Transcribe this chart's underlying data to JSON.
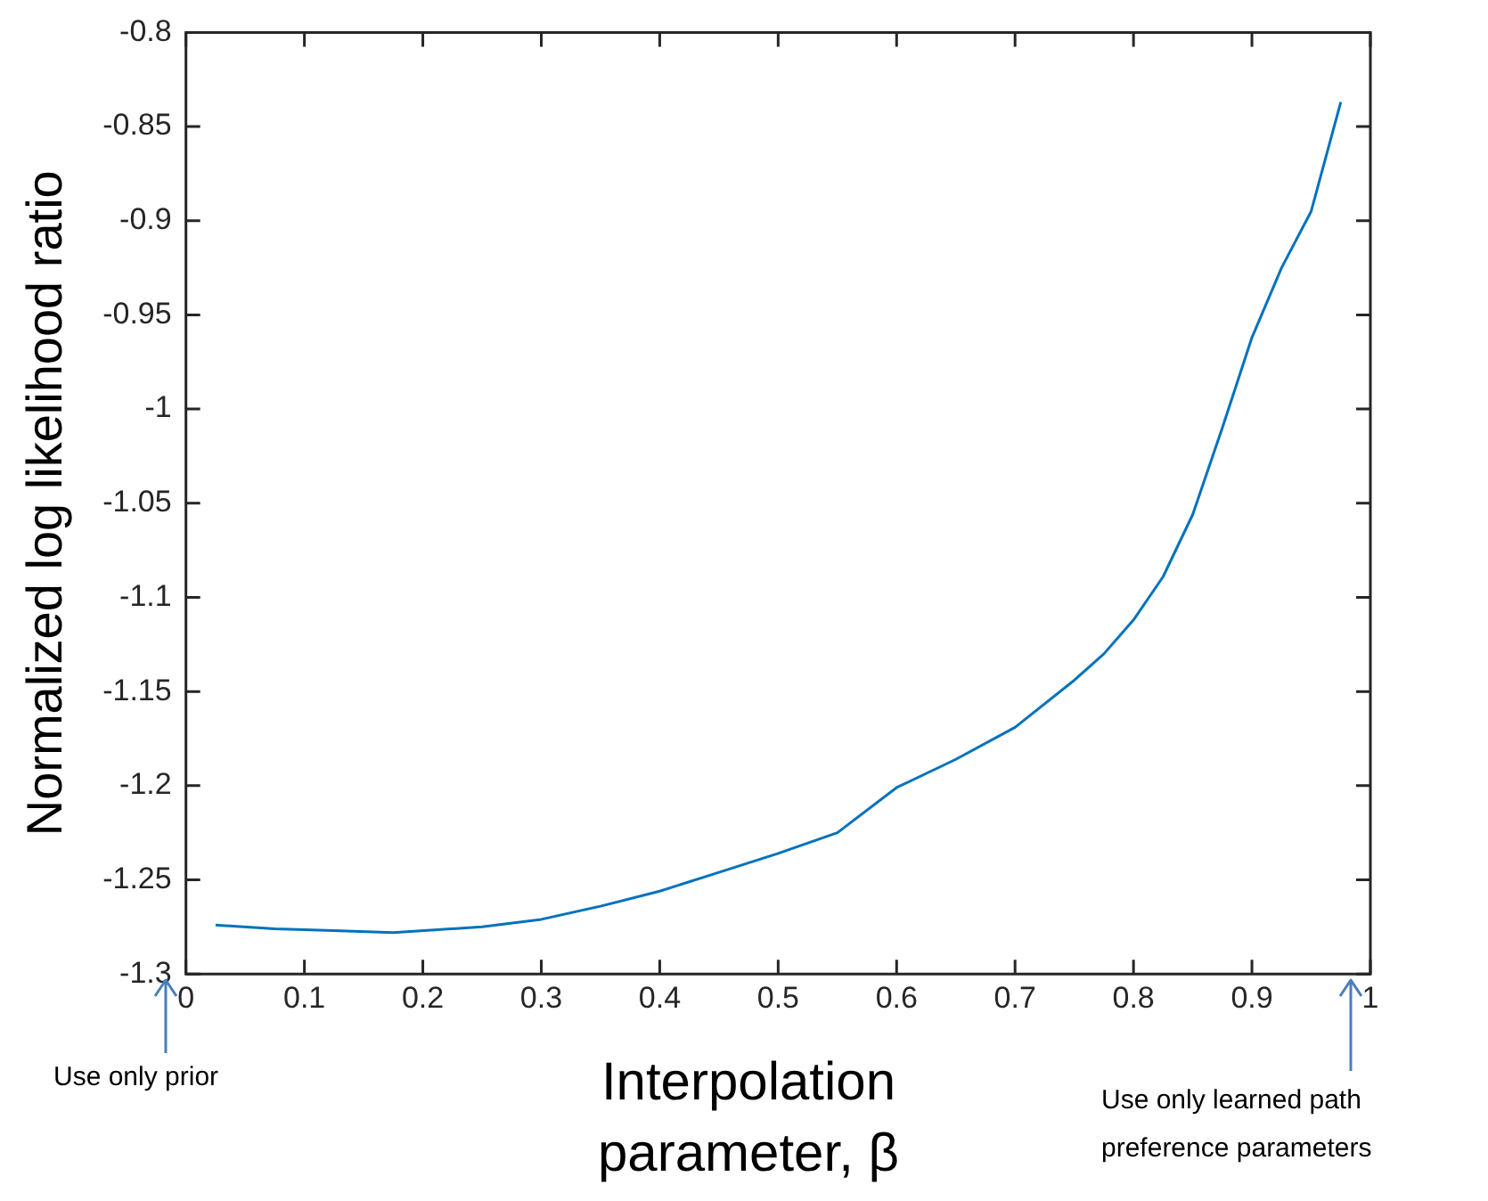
{
  "chart_data": {
    "type": "line",
    "xlabel": "Interpolation parameter, β",
    "ylabel": "Normalized log likelihood ratio",
    "x": [
      0.025,
      0.075,
      0.125,
      0.175,
      0.25,
      0.3,
      0.35,
      0.4,
      0.45,
      0.5,
      0.55,
      0.6,
      0.65,
      0.7,
      0.75,
      0.775,
      0.8,
      0.825,
      0.85,
      0.875,
      0.9,
      0.925,
      0.95,
      0.975
    ],
    "series": [
      {
        "color": "#0072bd",
        "values": [
          -1.274,
          -1.276,
          -1.277,
          -1.278,
          -1.275,
          -1.271,
          -1.264,
          -1.256,
          -1.246,
          -1.236,
          -1.225,
          -1.201,
          -1.186,
          -1.169,
          -1.144,
          -1.13,
          -1.112,
          -1.089,
          -1.056,
          -1.01,
          -0.962,
          -0.925,
          -0.895,
          -0.837
        ]
      }
    ],
    "xlim": [
      0,
      1
    ],
    "xticks": [
      0,
      0.1,
      0.2,
      0.3,
      0.4,
      0.5,
      0.6,
      0.7,
      0.8,
      0.9,
      1
    ],
    "ylim": [
      -1.3,
      -0.8
    ],
    "yticks": [
      -1.3,
      -1.25,
      -1.2,
      -1.15,
      -1.1,
      -1.05,
      -1,
      -0.95,
      -0.9,
      -0.85,
      -0.8
    ],
    "grid": false,
    "legend": false,
    "marker": "none",
    "line_style": "solid",
    "annotations": [
      "Use only prior",
      "Use only learned path preference parameters"
    ]
  }
}
